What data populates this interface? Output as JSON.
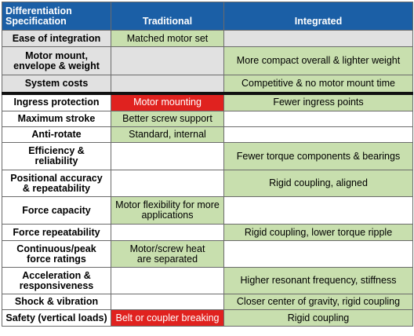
{
  "header": {
    "col1_line1": "Differentiation",
    "col1_line2": "Specification",
    "col2": "Traditional",
    "col3": "Integrated"
  },
  "rows": [
    {
      "feature": [
        "Ease of integration"
      ],
      "traditional": [
        "Matched motor set"
      ],
      "integrated": [
        ""
      ],
      "trad_color": "green",
      "int_color": "none",
      "shaded": true,
      "height": 21
    },
    {
      "feature": [
        "Motor mount,",
        "envelope & weight"
      ],
      "traditional": [
        ""
      ],
      "integrated": [
        "More compact overall & lighter weight"
      ],
      "trad_color": "none",
      "int_color": "green",
      "shaded": true,
      "height": 36
    },
    {
      "feature": [
        "System costs"
      ],
      "traditional": [
        ""
      ],
      "integrated": [
        "Competitive & no motor mount time"
      ],
      "trad_color": "none",
      "int_color": "green",
      "shaded": true,
      "height": 23
    },
    {
      "feature": [
        "Ingress protection"
      ],
      "traditional": [
        "Motor mounting"
      ],
      "integrated": [
        "Fewer ingress points"
      ],
      "trad_color": "red",
      "int_color": "green",
      "shaded": false,
      "height": 23,
      "divider": true
    },
    {
      "feature": [
        "Maximum stroke"
      ],
      "traditional": [
        "Better screw support"
      ],
      "integrated": [
        ""
      ],
      "trad_color": "green",
      "int_color": "none",
      "shaded": false,
      "height": 20
    },
    {
      "feature": [
        "Anti-rotate"
      ],
      "traditional": [
        "Standard, internal"
      ],
      "integrated": [
        ""
      ],
      "trad_color": "green",
      "int_color": "none",
      "shaded": false,
      "height": 20
    },
    {
      "feature": [
        "Efficiency &",
        "reliability"
      ],
      "traditional": [
        ""
      ],
      "integrated": [
        "Fewer torque components & bearings"
      ],
      "trad_color": "none",
      "int_color": "green",
      "shaded": false,
      "height": 35
    },
    {
      "feature": [
        "Positional accuracy",
        "& repeatability"
      ],
      "traditional": [
        ""
      ],
      "integrated": [
        "Rigid coupling, aligned"
      ],
      "trad_color": "none",
      "int_color": "green",
      "shaded": false,
      "height": 34
    },
    {
      "feature": [
        "Force capacity"
      ],
      "traditional": [
        "Motor flexibility for more",
        "applications"
      ],
      "integrated": [
        ""
      ],
      "trad_color": "green",
      "int_color": "none",
      "shaded": false,
      "height": 35
    },
    {
      "feature": [
        "Force repeatability"
      ],
      "traditional": [
        ""
      ],
      "integrated": [
        "Rigid coupling, lower torque ripple"
      ],
      "trad_color": "none",
      "int_color": "green",
      "shaded": false,
      "height": 21
    },
    {
      "feature": [
        "Continuous/peak",
        "force ratings"
      ],
      "traditional": [
        "Motor/screw heat",
        "are separated"
      ],
      "integrated": [
        ""
      ],
      "trad_color": "green",
      "int_color": "none",
      "shaded": false,
      "height": 34
    },
    {
      "feature": [
        "Acceleration &",
        "responsiveness"
      ],
      "traditional": [
        ""
      ],
      "integrated": [
        "Higher resonant frequency, stiffness"
      ],
      "trad_color": "none",
      "int_color": "green",
      "shaded": false,
      "height": 34
    },
    {
      "feature": [
        "Shock & vibration"
      ],
      "traditional": [
        ""
      ],
      "integrated": [
        "Closer center of gravity, rigid coupling"
      ],
      "trad_color": "none",
      "int_color": "green",
      "shaded": false,
      "height": 20
    },
    {
      "feature": [
        "Safety (vertical loads)"
      ],
      "traditional": [
        "Belt or coupler breaking"
      ],
      "integrated": [
        "Rigid coupling"
      ],
      "trad_color": "red",
      "int_color": "green",
      "shaded": false,
      "height": 21
    }
  ]
}
